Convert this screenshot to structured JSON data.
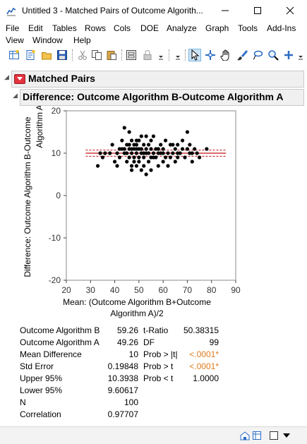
{
  "window": {
    "title": "Untitled 3 - Matched Pairs of Outcome Algorith...",
    "minimize_icon": "minimize-icon",
    "maximize_icon": "maximize-icon",
    "close_icon": "close-icon"
  },
  "menu": {
    "row1": [
      "File",
      "Edit",
      "Tables",
      "Rows",
      "Cols",
      "DOE",
      "Analyze",
      "Graph",
      "Tools",
      "Add-Ins"
    ],
    "row2": [
      "View",
      "Window",
      "Help"
    ]
  },
  "toolbar": {
    "icons": [
      "new-data-table-icon",
      "new-script-icon",
      "open-icon",
      "save-icon",
      "cut-icon",
      "copy-icon",
      "paste-icon",
      "journal-icon",
      "lock-icon",
      "arrow-tool-icon",
      "crosshair-tool-icon",
      "hand-tool-icon",
      "brush-tool-icon",
      "lasso-tool-icon",
      "magnifier-tool-icon",
      "add-tool-icon"
    ]
  },
  "report": {
    "outline_title": "Matched Pairs",
    "sub_title": "Difference: Outcome Algorithm B-Outcome Algorithm A"
  },
  "chart_data": {
    "type": "scatter",
    "ylabel": "Difference: Outcome Algorithm B-Outcome Algorithm A",
    "xlabel": "Mean: (Outcome Algorithm B+Outcome Algorithm A)/2",
    "xlim": [
      20,
      90
    ],
    "ylim": [
      -20,
      20
    ],
    "x_ticks": [
      20,
      30,
      40,
      50,
      60,
      70,
      80,
      90
    ],
    "y_ticks": [
      20,
      10,
      0,
      -10,
      -20
    ],
    "mean_difference": 10,
    "upper_95": 10.3938,
    "lower_95": 9.60617,
    "points": [
      [
        33,
        7
      ],
      [
        34,
        10
      ],
      [
        35,
        9
      ],
      [
        36,
        10
      ],
      [
        38,
        10
      ],
      [
        39,
        12
      ],
      [
        40,
        8
      ],
      [
        41,
        7
      ],
      [
        41,
        10
      ],
      [
        42,
        11
      ],
      [
        42,
        9
      ],
      [
        43,
        13
      ],
      [
        43,
        11
      ],
      [
        44,
        16
      ],
      [
        44,
        10
      ],
      [
        45,
        8
      ],
      [
        45,
        12
      ],
      [
        45,
        10
      ],
      [
        46,
        15
      ],
      [
        46,
        11
      ],
      [
        46,
        9
      ],
      [
        47,
        7
      ],
      [
        47,
        11
      ],
      [
        47,
        13
      ],
      [
        47,
        10
      ],
      [
        47,
        6
      ],
      [
        48,
        12
      ],
      [
        48,
        9
      ],
      [
        48,
        11
      ],
      [
        48,
        8
      ],
      [
        49,
        11
      ],
      [
        49,
        10
      ],
      [
        49,
        7
      ],
      [
        49,
        12
      ],
      [
        50,
        11
      ],
      [
        50,
        9
      ],
      [
        50,
        13
      ],
      [
        50,
        8
      ],
      [
        51,
        10
      ],
      [
        51,
        14
      ],
      [
        51,
        6
      ],
      [
        51,
        11
      ],
      [
        52,
        12
      ],
      [
        52,
        9
      ],
      [
        52,
        7
      ],
      [
        53,
        10
      ],
      [
        53,
        5
      ],
      [
        53,
        11
      ],
      [
        53,
        14
      ],
      [
        54,
        12
      ],
      [
        54,
        8
      ],
      [
        54,
        10
      ],
      [
        55,
        13
      ],
      [
        55,
        11
      ],
      [
        55,
        6
      ],
      [
        56,
        10
      ],
      [
        56,
        14
      ],
      [
        57,
        9
      ],
      [
        57,
        11
      ],
      [
        58,
        10
      ],
      [
        58,
        7
      ],
      [
        59,
        12
      ],
      [
        59,
        10
      ],
      [
        60,
        8
      ],
      [
        60,
        11
      ],
      [
        61,
        13
      ],
      [
        61,
        9
      ],
      [
        62,
        10
      ],
      [
        62,
        7
      ],
      [
        63,
        12
      ],
      [
        63,
        9
      ],
      [
        64,
        10
      ],
      [
        65,
        11
      ],
      [
        65,
        8
      ],
      [
        66,
        9
      ],
      [
        66,
        12
      ],
      [
        67,
        10
      ],
      [
        68,
        11
      ],
      [
        68,
        13
      ],
      [
        69,
        9
      ],
      [
        70,
        11
      ],
      [
        70,
        15
      ],
      [
        71,
        10
      ],
      [
        71,
        12
      ],
      [
        72,
        10
      ],
      [
        72,
        8
      ],
      [
        73,
        11
      ],
      [
        74,
        10
      ],
      [
        75,
        9
      ],
      [
        78,
        11
      ],
      [
        56,
        9
      ],
      [
        58,
        11
      ],
      [
        46,
        12
      ],
      [
        52,
        10
      ],
      [
        60,
        10
      ],
      [
        64,
        12
      ],
      [
        44,
        11
      ],
      [
        66,
        10
      ],
      [
        55,
        9
      ],
      [
        49,
        13
      ]
    ]
  },
  "stats": [
    {
      "label": "Outcome Algorithm B",
      "value": "59.26",
      "label2": "t-Ratio",
      "value2": "50.38315"
    },
    {
      "label": "Outcome Algorithm A",
      "value": "49.26",
      "label2": "DF",
      "value2": "99"
    },
    {
      "label": "Mean Difference",
      "value": "10",
      "label2": "Prob > |t|",
      "value2": "<.0001*"
    },
    {
      "label": "Std Error",
      "value": "0.19848",
      "label2": "Prob > t",
      "value2": "<.0001*"
    },
    {
      "label": "Upper 95%",
      "value": "10.3938",
      "label2": "Prob < t",
      "value2": "1.0000"
    },
    {
      "label": "Lower 95%",
      "value": "9.60617",
      "label2": "",
      "value2": ""
    },
    {
      "label": "N",
      "value": "100",
      "label2": "",
      "value2": ""
    },
    {
      "label": "Correlation",
      "value": "0.97707",
      "label2": "",
      "value2": ""
    }
  ],
  "colors": {
    "significant": "#e07b1c",
    "mean_line": "#c0151b",
    "ci_line": "#c0151b",
    "point": "#000000"
  }
}
